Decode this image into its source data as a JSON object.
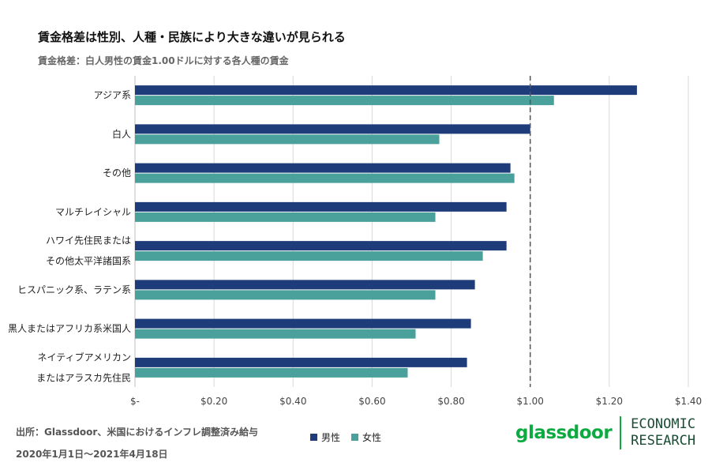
{
  "header": {
    "title": "賃金格差は性別、人種・民族により大きな違いが見られる",
    "subtitle": "賃金格差：白人男性の賃金1.00ドルに対する各人種の賃金"
  },
  "chart_data": {
    "type": "bar",
    "orientation": "horizontal",
    "categories": [
      [
        "アジア系"
      ],
      [
        "白人"
      ],
      [
        "その他"
      ],
      [
        "マルチレイシャル"
      ],
      [
        "ハワイ先住民または",
        "その他太平洋諸国系"
      ],
      [
        "ヒスパニック系、ラテン系"
      ],
      [
        "黒人またはアフリカ系米国人"
      ],
      [
        "ネイティブアメリカン",
        "またはアラスカ先住民"
      ]
    ],
    "series": [
      {
        "name": "男性",
        "color": "#1f3c7a",
        "values": [
          1.27,
          1.0,
          0.95,
          0.94,
          0.94,
          0.86,
          0.85,
          0.84
        ]
      },
      {
        "name": "女性",
        "color": "#4aa19b",
        "values": [
          1.06,
          0.77,
          0.96,
          0.76,
          0.88,
          0.76,
          0.71,
          0.69
        ]
      }
    ],
    "xlim": [
      0,
      1.4
    ],
    "xticks": [
      0,
      0.2,
      0.4,
      0.6,
      0.8,
      1.0,
      1.2,
      1.4
    ],
    "xtick_labels": [
      "$-",
      "$0.20",
      "$0.40",
      "$0.60",
      "$0.80",
      "$1.00",
      "$1.20",
      "$1.40"
    ],
    "reference_line": 1.0,
    "grid": true,
    "legend_position": "bottom"
  },
  "footer": {
    "source_line1": "出所：Glassdoor、米国におけるインフレ調整済み給与",
    "source_line2": "2020年1月1日～2021年4月18日",
    "brand_name": "glassdoor",
    "brand_econ_line1": "ECONOMIC",
    "brand_econ_line2": "RESEARCH"
  }
}
